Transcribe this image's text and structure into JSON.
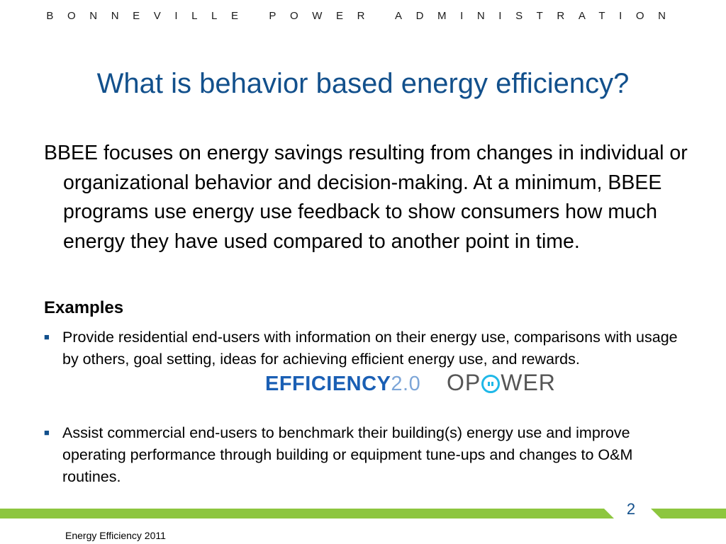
{
  "header": {
    "organization": "BONNEVILLE POWER ADMINISTRATION"
  },
  "slide": {
    "title": "What is behavior based energy efficiency?",
    "intro": "BBEE focuses on energy savings resulting from changes in individual or organizational behavior and decision-making.  At a minimum, BBEE programs use energy use feedback to show consumers how much energy they have used compared to another point in time.",
    "examples_heading": "Examples",
    "bullets": [
      "Provide residential end-users with information on their energy use, comparisons with usage by others, goal setting, ideas for achieving efficient energy use, and rewards.",
      "Assist commercial end-users to benchmark their building(s) energy use and improve operating performance through building or equipment tune-ups and changes to O&M routines."
    ],
    "logos": {
      "efficiency_word": "EFFICIENCY",
      "efficiency_version": "2.0",
      "opower_left": "OP",
      "opower_right": "WER"
    }
  },
  "footer": {
    "page_number": "2",
    "text": "Energy Efficiency 2011"
  },
  "colors": {
    "title": "#12508c",
    "footer_green": "#8dc63f",
    "bullet_marker": "#12508c"
  }
}
